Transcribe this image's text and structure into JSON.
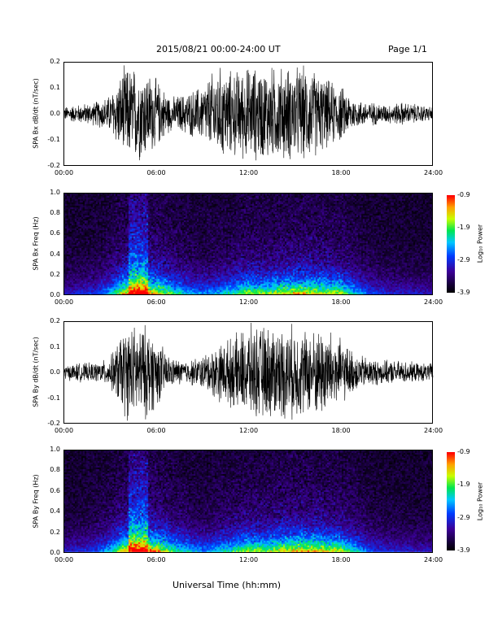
{
  "header": {
    "title": "2015/08/21  00:00-24:00 UT",
    "page": "Page 1/1"
  },
  "x_axis_title": "Universal Time (hh:mm)",
  "chart_data": [
    {
      "type": "line",
      "panel": "SPA Bx waveform",
      "ylabel": "SPA Bx dB/dt (nT/sec)",
      "x_ticks": [
        "00:00",
        "06:00",
        "12:00",
        "18:00",
        "24:00"
      ],
      "y_ticks": [
        "0.2",
        "0.1",
        "0.0",
        "-0.1",
        "-0.2"
      ],
      "ylim": [
        -0.2,
        0.2
      ],
      "xlim_hours": [
        0,
        24
      ],
      "series": [
        {
          "x_hours": [
            0,
            1,
            2,
            3,
            4,
            4.5,
            5,
            5.5,
            6,
            7,
            8,
            9,
            10,
            11,
            12,
            13,
            14,
            15,
            16,
            17,
            18,
            19,
            20,
            21,
            22,
            23,
            24
          ],
          "amplitude": [
            0.03,
            0.04,
            0.05,
            0.08,
            0.2,
            0.2,
            0.2,
            0.18,
            0.15,
            0.07,
            0.09,
            0.12,
            0.2,
            0.18,
            0.2,
            0.2,
            0.2,
            0.2,
            0.2,
            0.15,
            0.12,
            0.06,
            0.05,
            0.04,
            0.05,
            0.04,
            0.03
          ]
        }
      ]
    },
    {
      "type": "heatmap",
      "panel": "SPA Bx spectrogram",
      "ylabel": "SPA Bx Freq (Hz)",
      "x_ticks": [
        "00:00",
        "06:00",
        "12:00",
        "18:00",
        "24:00"
      ],
      "y_ticks": [
        "1.0",
        "0.8",
        "0.6",
        "0.4",
        "0.2",
        "0.0"
      ],
      "ylim": [
        0.0,
        1.0
      ],
      "colorbar_label": "Log₁₀ Power",
      "colorbar_ticks": [
        "-0.9",
        "-1.9",
        "-2.9",
        "-3.9"
      ],
      "color_range": [
        -3.9,
        -0.9
      ]
    },
    {
      "type": "line",
      "panel": "SPA By waveform",
      "ylabel": "SPA By dB/dt (nT/sec)",
      "x_ticks": [
        "00:00",
        "06:00",
        "12:00",
        "18:00",
        "24:00"
      ],
      "y_ticks": [
        "0.2",
        "0.1",
        "0.0",
        "-0.1",
        "-0.2"
      ],
      "ylim": [
        -0.2,
        0.2
      ],
      "xlim_hours": [
        0,
        24
      ],
      "series": [
        {
          "x_hours": [
            0,
            1,
            2,
            3,
            4,
            4.5,
            5,
            5.5,
            6,
            7,
            8,
            9,
            10,
            11,
            12,
            13,
            14,
            15,
            16,
            17,
            18,
            19,
            20,
            21,
            22,
            23,
            24
          ],
          "amplitude": [
            0.03,
            0.04,
            0.04,
            0.06,
            0.2,
            0.2,
            0.2,
            0.2,
            0.15,
            0.06,
            0.05,
            0.07,
            0.12,
            0.15,
            0.2,
            0.2,
            0.2,
            0.2,
            0.18,
            0.2,
            0.14,
            0.08,
            0.06,
            0.05,
            0.05,
            0.04,
            0.04
          ]
        }
      ]
    },
    {
      "type": "heatmap",
      "panel": "SPA By spectrogram",
      "ylabel": "SPA By Freq (Hz)",
      "x_ticks": [
        "00:00",
        "06:00",
        "12:00",
        "18:00",
        "24:00"
      ],
      "y_ticks": [
        "1.0",
        "0.8",
        "0.6",
        "0.4",
        "0.2",
        "0.0"
      ],
      "ylim": [
        0.0,
        1.0
      ],
      "colorbar_label": "Log₁₀ Power",
      "colorbar_ticks": [
        "-0.9",
        "-1.9",
        "-2.9",
        "-3.9"
      ],
      "color_range": [
        -3.9,
        -0.9
      ]
    }
  ]
}
